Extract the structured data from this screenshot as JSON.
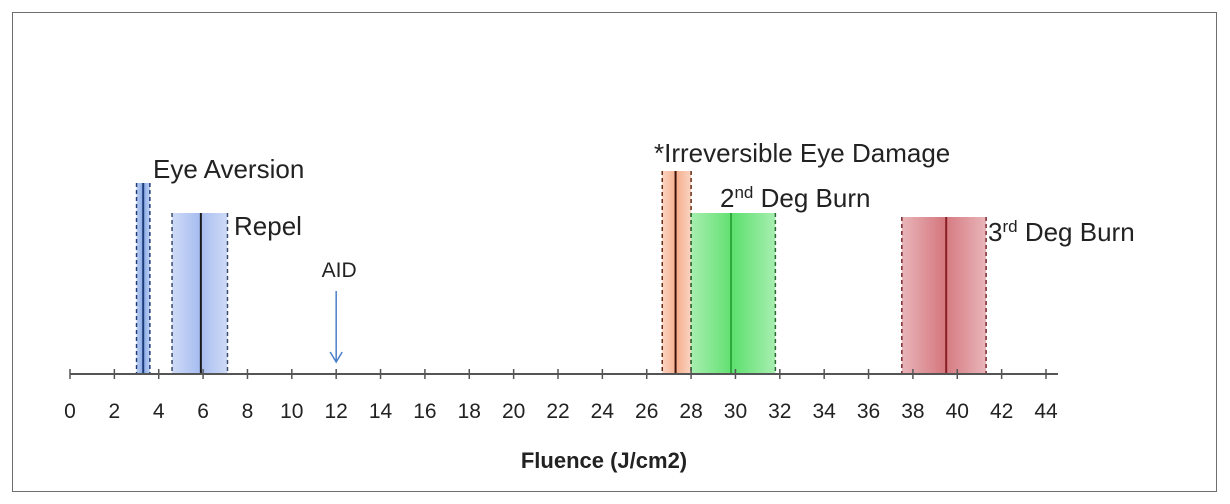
{
  "chart_data": {
    "type": "bar",
    "xlabel": "Fluence (J/cm2)",
    "ylabel": "",
    "xlim": [
      0,
      44
    ],
    "xticks": [
      0,
      2,
      4,
      6,
      8,
      10,
      12,
      14,
      16,
      18,
      20,
      22,
      24,
      26,
      28,
      30,
      32,
      34,
      36,
      38,
      40,
      42,
      44
    ],
    "grid": false,
    "bands": [
      {
        "label": "Eye Aversion",
        "sup": "",
        "label_suffix": "",
        "low": 3.0,
        "high": 3.6,
        "center": 3.3,
        "fill": "#86a8e6",
        "stroke": "#1f3c7a",
        "center_line": "#1f3c7a"
      },
      {
        "label": "Repel",
        "sup": "",
        "label_suffix": "",
        "low": 4.6,
        "high": 7.1,
        "center": 5.9,
        "fill": "#a7bdf0",
        "stroke": "#3b4c6e",
        "center_line": "#1b1b1b"
      },
      {
        "label": "*Irreversible Eye Damage",
        "sup": "",
        "label_suffix": "",
        "low": 26.7,
        "high": 28.0,
        "center": 27.3,
        "fill": "#f6b08f",
        "stroke": "#6b2b12",
        "center_line": "#3a120a"
      },
      {
        "label": "2",
        "sup": "nd",
        "label_suffix": " Deg Burn",
        "low": 28.0,
        "high": 31.8,
        "center": 29.8,
        "fill": "#5fe06f",
        "stroke": "#2a6a30",
        "center_line": "#2ea83c"
      },
      {
        "label": "3",
        "sup": "rd",
        "label_suffix": " Deg Burn",
        "low": 37.5,
        "high": 41.3,
        "center": 39.5,
        "fill": "#d5787f",
        "stroke": "#7a2a30",
        "center_line": "#8a1e26"
      }
    ],
    "markers": [
      {
        "label": "AID",
        "x": 12,
        "color": "#4a7fc9"
      }
    ]
  }
}
